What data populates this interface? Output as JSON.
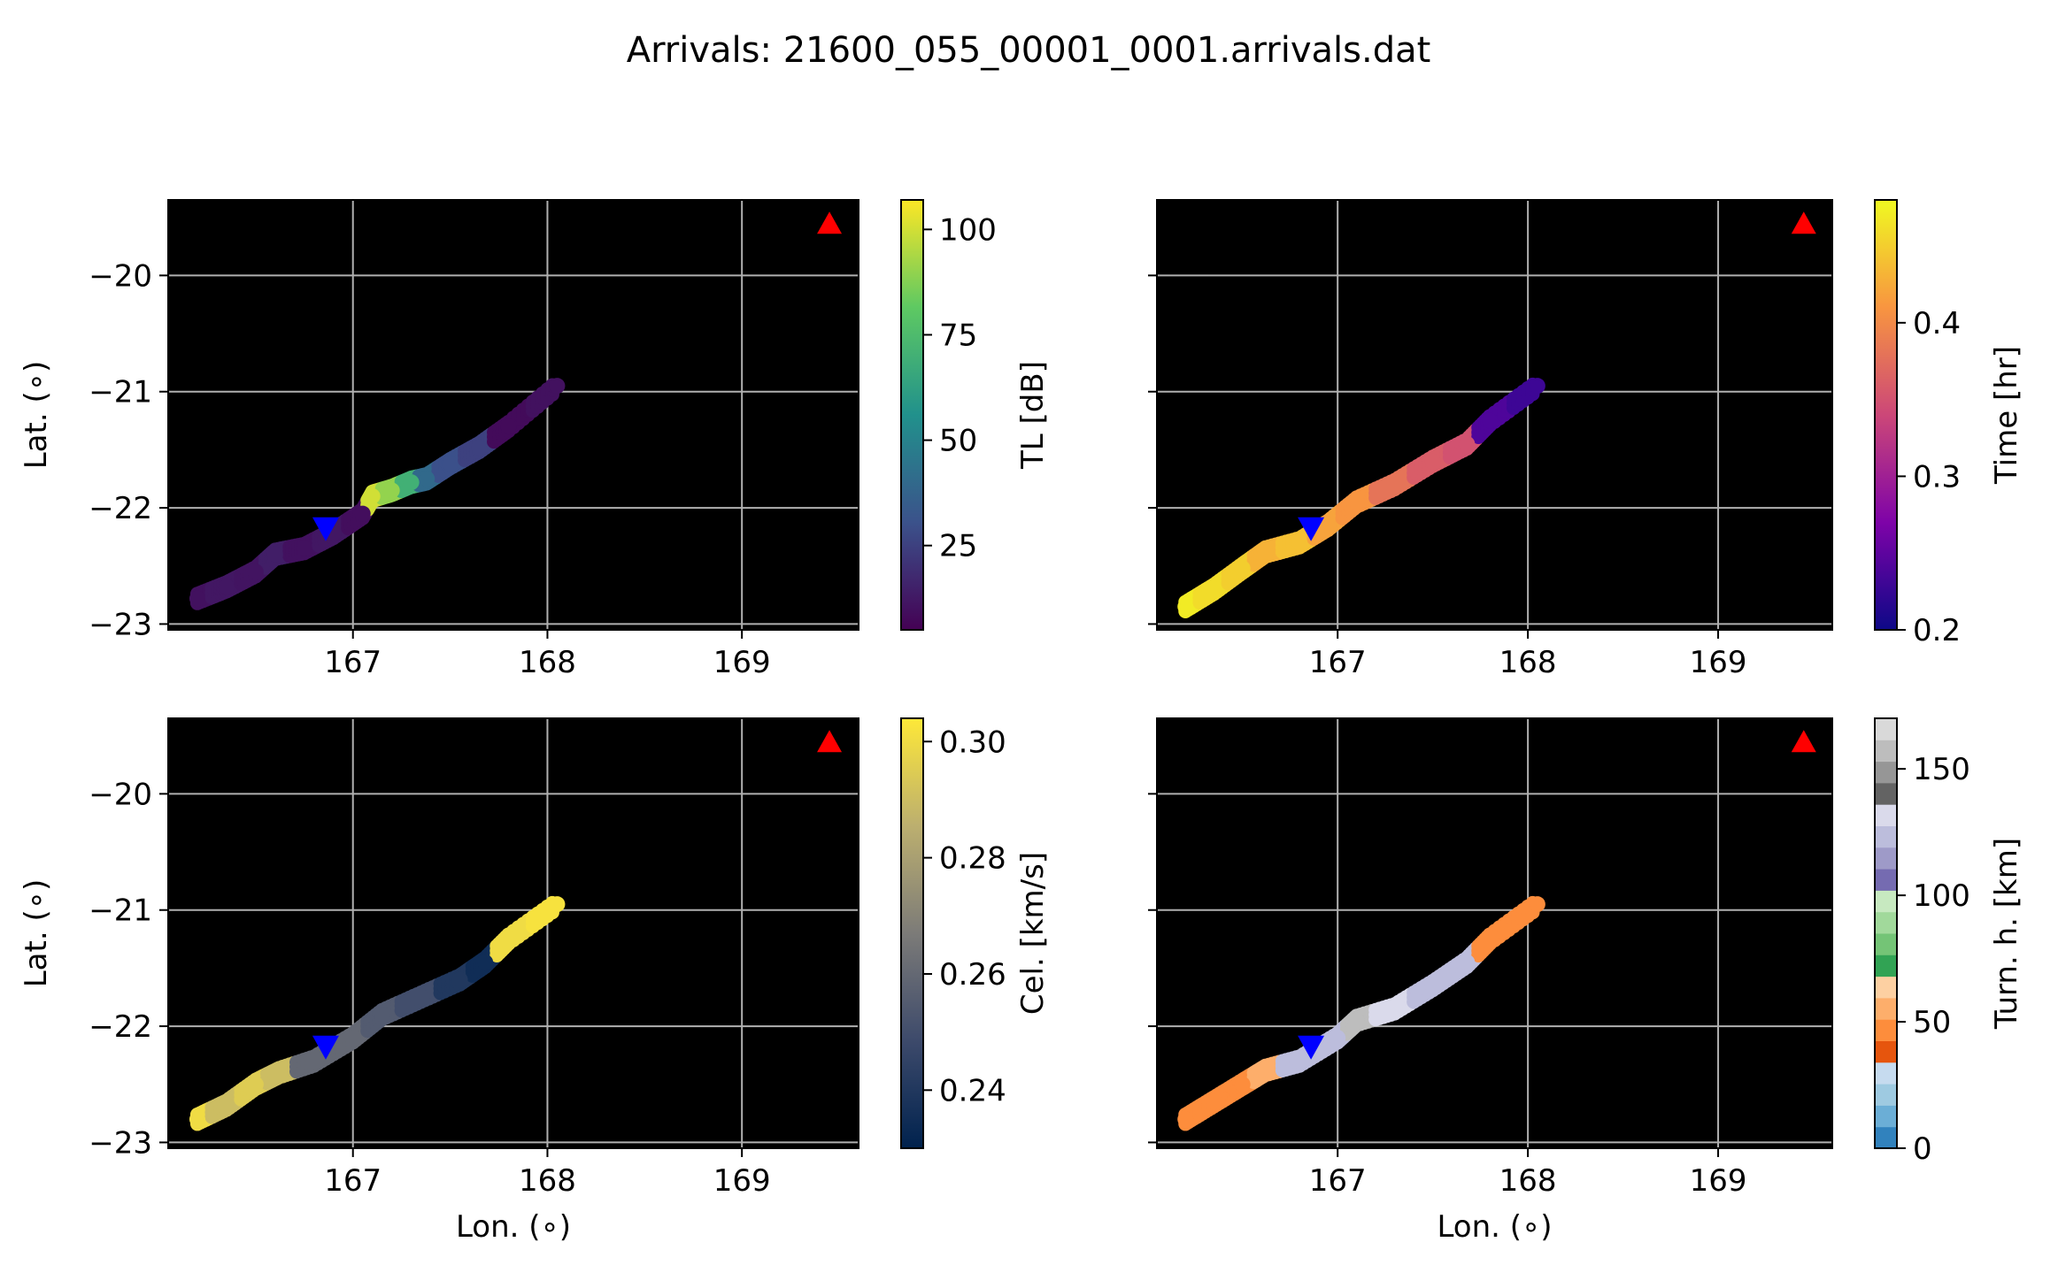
{
  "title": "Arrivals: 21600_055_00001_0001.arrivals.dat",
  "markers": {
    "source": {
      "lon": 169.45,
      "lat": -19.55,
      "color": "#ff0000",
      "shape": "triangle-up"
    },
    "receiver": {
      "lon": 166.86,
      "lat": -22.18,
      "color": "#0000ff",
      "shape": "triangle-down"
    }
  },
  "chart_data": [
    {
      "type": "scatter",
      "xlabel": "",
      "ylabel": "Lat. (∘)",
      "xlim": [
        166.05,
        169.6
      ],
      "ylim": [
        -23.05,
        -19.35
      ],
      "xticks": [
        167,
        168,
        169
      ],
      "yticks": [
        -20,
        -21,
        -22,
        -23
      ],
      "grid": true,
      "background": "#000000",
      "colorbar": {
        "label": "TL [dB]",
        "min": 5,
        "max": 107,
        "ticks": [
          25,
          50,
          75,
          100
        ],
        "cmap": "viridis"
      },
      "points": [
        {
          "lon": 166.2,
          "lat": -22.78,
          "v": 10
        },
        {
          "lon": 166.35,
          "lat": -22.68,
          "v": 12
        },
        {
          "lon": 166.5,
          "lat": -22.55,
          "v": 11
        },
        {
          "lon": 166.6,
          "lat": -22.4,
          "v": 14
        },
        {
          "lon": 166.75,
          "lat": -22.35,
          "v": 10
        },
        {
          "lon": 166.9,
          "lat": -22.22,
          "v": 12
        },
        {
          "lon": 167.05,
          "lat": -22.05,
          "v": 9
        },
        {
          "lon": 167.1,
          "lat": -21.9,
          "v": 100
        },
        {
          "lon": 167.2,
          "lat": -21.85,
          "v": 90
        },
        {
          "lon": 167.3,
          "lat": -21.78,
          "v": 70
        },
        {
          "lon": 167.38,
          "lat": -21.75,
          "v": 40
        },
        {
          "lon": 167.5,
          "lat": -21.62,
          "v": 30
        },
        {
          "lon": 167.65,
          "lat": -21.48,
          "v": 25
        },
        {
          "lon": 167.8,
          "lat": -21.3,
          "v": 8
        },
        {
          "lon": 168.05,
          "lat": -20.95,
          "v": 10
        }
      ]
    },
    {
      "type": "scatter",
      "xlabel": "",
      "ylabel": "",
      "xlim": [
        166.05,
        169.6
      ],
      "ylim": [
        -23.05,
        -19.35
      ],
      "xticks": [
        167,
        168,
        169
      ],
      "yticks": [
        -20,
        -21,
        -22,
        -23
      ],
      "grid": true,
      "background": "#000000",
      "colorbar": {
        "label": "Time [hr]",
        "min": 0.2,
        "max": 0.48,
        "ticks": [
          0.2,
          0.3,
          0.4
        ],
        "cmap": "plasma"
      },
      "points": [
        {
          "lon": 166.2,
          "lat": -22.85,
          "v": 0.47
        },
        {
          "lon": 166.35,
          "lat": -22.7,
          "v": 0.46
        },
        {
          "lon": 166.5,
          "lat": -22.52,
          "v": 0.45
        },
        {
          "lon": 166.62,
          "lat": -22.38,
          "v": 0.43
        },
        {
          "lon": 166.8,
          "lat": -22.3,
          "v": 0.44
        },
        {
          "lon": 166.95,
          "lat": -22.15,
          "v": 0.42
        },
        {
          "lon": 167.1,
          "lat": -21.95,
          "v": 0.41
        },
        {
          "lon": 167.3,
          "lat": -21.8,
          "v": 0.38
        },
        {
          "lon": 167.5,
          "lat": -21.6,
          "v": 0.36
        },
        {
          "lon": 167.68,
          "lat": -21.45,
          "v": 0.35
        },
        {
          "lon": 167.8,
          "lat": -21.25,
          "v": 0.24
        },
        {
          "lon": 168.05,
          "lat": -20.95,
          "v": 0.23
        }
      ]
    },
    {
      "type": "scatter",
      "xlabel": "Lon. (∘)",
      "ylabel": "Lat. (∘)",
      "xlim": [
        166.05,
        169.6
      ],
      "ylim": [
        -23.05,
        -19.35
      ],
      "xticks": [
        167,
        168,
        169
      ],
      "yticks": [
        -20,
        -21,
        -22,
        -23
      ],
      "grid": true,
      "background": "#000000",
      "colorbar": {
        "label": "Cel. [km/s]",
        "min": 0.23,
        "max": 0.304,
        "ticks": [
          0.24,
          0.26,
          0.28,
          0.3
        ],
        "cmap": "cividis"
      },
      "points": [
        {
          "lon": 166.2,
          "lat": -22.8,
          "v": 0.3
        },
        {
          "lon": 166.35,
          "lat": -22.68,
          "v": 0.29
        },
        {
          "lon": 166.5,
          "lat": -22.5,
          "v": 0.295
        },
        {
          "lon": 166.62,
          "lat": -22.4,
          "v": 0.29
        },
        {
          "lon": 166.8,
          "lat": -22.3,
          "v": 0.26
        },
        {
          "lon": 167.0,
          "lat": -22.1,
          "v": 0.26
        },
        {
          "lon": 167.15,
          "lat": -21.9,
          "v": 0.255
        },
        {
          "lon": 167.35,
          "lat": -21.75,
          "v": 0.25
        },
        {
          "lon": 167.55,
          "lat": -21.6,
          "v": 0.24
        },
        {
          "lon": 167.68,
          "lat": -21.45,
          "v": 0.235
        },
        {
          "lon": 167.8,
          "lat": -21.25,
          "v": 0.3
        },
        {
          "lon": 168.05,
          "lat": -20.95,
          "v": 0.302
        }
      ]
    },
    {
      "type": "scatter",
      "xlabel": "Lon. (∘)",
      "ylabel": "",
      "xlim": [
        166.05,
        169.6
      ],
      "ylim": [
        -23.05,
        -19.35
      ],
      "xticks": [
        167,
        168,
        169
      ],
      "yticks": [
        -20,
        -21,
        -22,
        -23
      ],
      "grid": true,
      "background": "#000000",
      "colorbar": {
        "label": "Turn. h. [km]",
        "min": 0,
        "max": 170,
        "ticks": [
          0,
          50,
          100,
          150
        ],
        "cmap": "tab20c"
      },
      "points": [
        {
          "lon": 166.2,
          "lat": -22.8,
          "v": 44
        },
        {
          "lon": 166.35,
          "lat": -22.65,
          "v": 45
        },
        {
          "lon": 166.5,
          "lat": -22.5,
          "v": 46
        },
        {
          "lon": 166.62,
          "lat": -22.38,
          "v": 55
        },
        {
          "lon": 166.8,
          "lat": -22.3,
          "v": 125
        },
        {
          "lon": 167.0,
          "lat": -22.1,
          "v": 122
        },
        {
          "lon": 167.1,
          "lat": -21.95,
          "v": 155
        },
        {
          "lon": 167.3,
          "lat": -21.85,
          "v": 130
        },
        {
          "lon": 167.5,
          "lat": -21.65,
          "v": 125
        },
        {
          "lon": 167.68,
          "lat": -21.45,
          "v": 125
        },
        {
          "lon": 167.8,
          "lat": -21.25,
          "v": 44
        },
        {
          "lon": 168.05,
          "lat": -20.95,
          "v": 46
        }
      ]
    }
  ]
}
